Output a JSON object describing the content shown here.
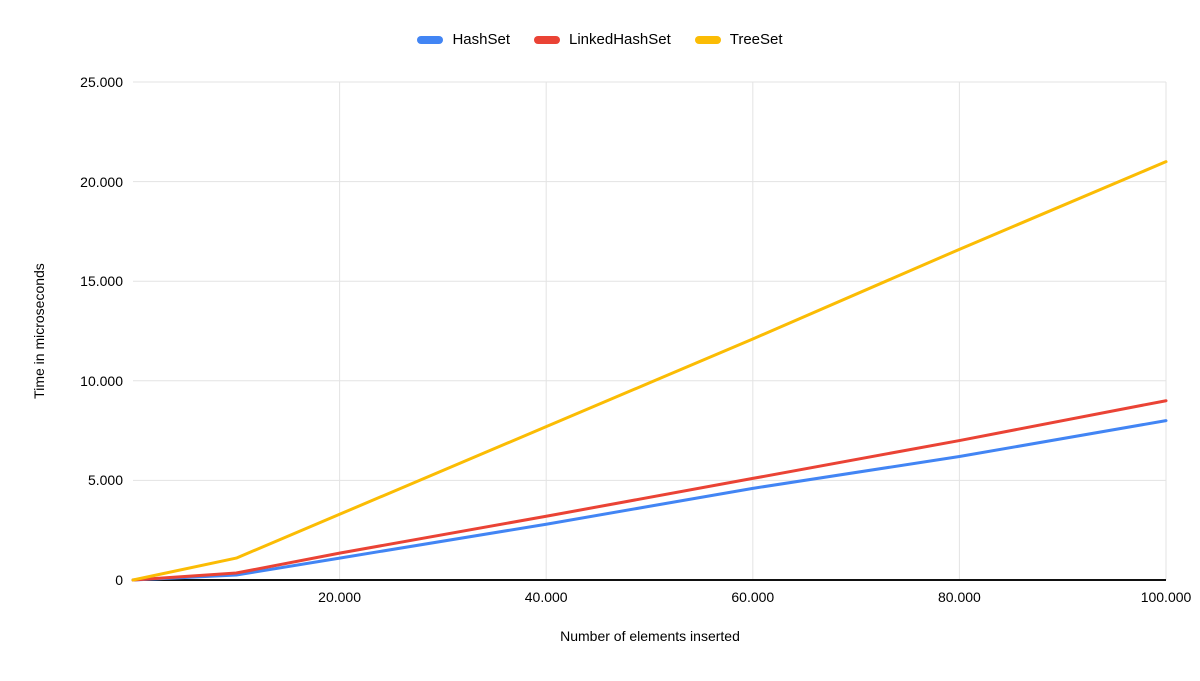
{
  "chart_data": {
    "type": "line",
    "title": "",
    "xlabel": "Number of elements inserted",
    "ylabel": "Time in microseconds",
    "x": [
      0,
      10000,
      20000,
      40000,
      60000,
      80000,
      100000
    ],
    "series": [
      {
        "name": "HashSet",
        "color": "#4285F4",
        "values": [
          0,
          250,
          1100,
          2800,
          4600,
          6200,
          8000
        ]
      },
      {
        "name": "LinkedHashSet",
        "color": "#EA4335",
        "values": [
          0,
          350,
          1350,
          3200,
          5100,
          7000,
          9000
        ]
      },
      {
        "name": "TreeSet",
        "color": "#FBBC04",
        "values": [
          0,
          1100,
          3300,
          7700,
          12100,
          16600,
          21000
        ]
      }
    ],
    "xlim": [
      0,
      100000
    ],
    "ylim": [
      0,
      25000
    ],
    "x_ticks": [
      {
        "label": "20.000",
        "value": 20000
      },
      {
        "label": "40.000",
        "value": 40000
      },
      {
        "label": "60.000",
        "value": 60000
      },
      {
        "label": "80.000",
        "value": 80000
      },
      {
        "label": "100.000",
        "value": 100000
      }
    ],
    "y_ticks": [
      {
        "label": "0",
        "value": 0
      },
      {
        "label": "5.000",
        "value": 5000
      },
      {
        "label": "10.000",
        "value": 10000
      },
      {
        "label": "15.000",
        "value": 15000
      },
      {
        "label": "20.000",
        "value": 20000
      },
      {
        "label": "25.000",
        "value": 25000
      }
    ],
    "grid": true,
    "legend_position": "top"
  },
  "colors": {
    "background": "#ffffff",
    "grid": "#e3e3e3",
    "axis": "#111111",
    "text": "#000000"
  }
}
